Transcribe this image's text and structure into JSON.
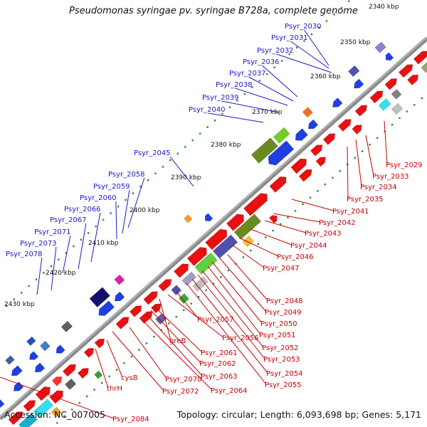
{
  "title": "Pseudomonas syringae pv. syringae B728a, complete genome",
  "footer": {
    "accession": "Accession: NC_007005",
    "summary": "Topology: circular; Length: 6,093,698 bp; Genes: 5,171"
  },
  "colors": {
    "backbone": "#888888",
    "forward_gene": "#1f3fe0",
    "reverse_gene": "#e81010",
    "label_blue": "#1a1ad0",
    "label_red": "#c80000",
    "tick_dots": "#2a8a2a"
  },
  "kbp_ticks": [
    {
      "label": "2340 kbp"
    },
    {
      "label": "2350 kbp"
    },
    {
      "label": "2360 kbp"
    },
    {
      "label": "2370 kbp"
    },
    {
      "label": "2380 kbp"
    },
    {
      "label": "2390 kbp"
    },
    {
      "label": "2400 kbp"
    },
    {
      "label": "2410 kbp"
    },
    {
      "label": "2420 kbp"
    },
    {
      "label": "2430 kbp"
    }
  ],
  "blue_labels": [
    "Psyr_2030",
    "Psyr_2031",
    "Psyr_2032",
    "Psyr_2036",
    "Psyr_2037",
    "Psyr_2038",
    "Psyr_2039",
    "Psyr_2040",
    "Psyr_2045",
    "Psyr_2058",
    "Psyr_2059",
    "Psyr_2060",
    "Psyr_2066",
    "Psyr_2067",
    "Psyr_2071",
    "Psyr_2073",
    "Psyr_2078"
  ],
  "red_labels": [
    "Psyr_2029",
    "Psyr_2033",
    "Psyr_2034",
    "Psyr_2035",
    "Psyr_2041",
    "Psyr_2042",
    "Psyr_2043",
    "Psyr_2044",
    "Psyr_2046",
    "Psyr_2047",
    "Psyr_2048",
    "Psyr_2049",
    "Psyr_2050",
    "Psyr_2051",
    "Psyr_2052",
    "Psyr_2053",
    "Psyr_2054",
    "Psyr_2055",
    "Psyr_2057",
    "Psyr_2056",
    "greB",
    "Psyr_2061",
    "Psyr_2062",
    "Psyr_2063",
    "Psyr_2064",
    "Psyr_2070",
    "Psyr_2072",
    "cysB",
    "thrH",
    "Psyr_2084"
  ]
}
